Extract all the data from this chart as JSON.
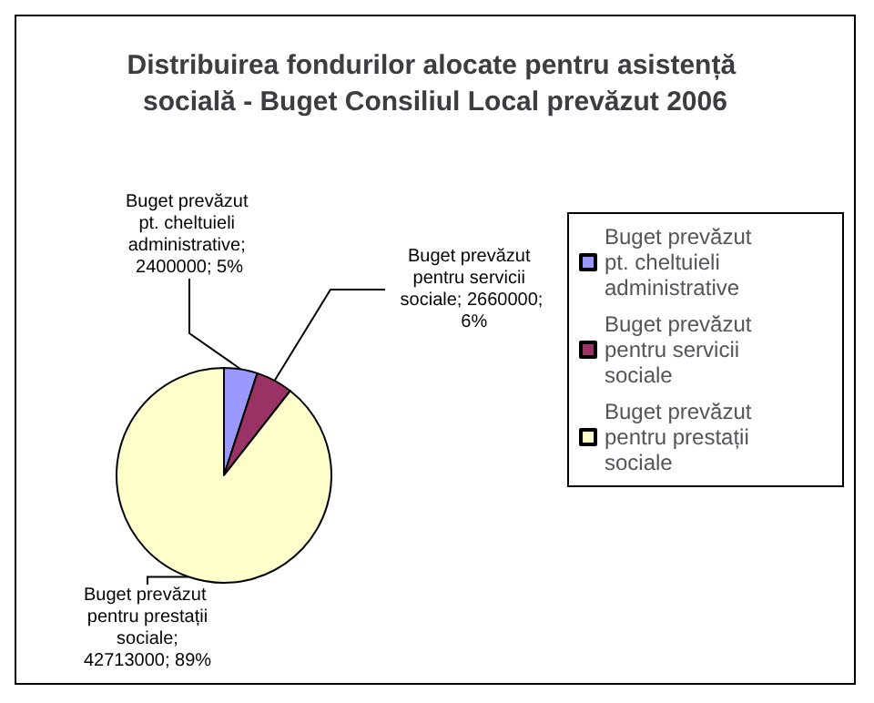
{
  "chart_data": {
    "type": "pie",
    "title": "Distribuirea fondurilor alocate pentru asistență socială - Buget Consiliul Local prevăzut 2006",
    "categories": [
      "Buget prevăzut pt. cheltuieli administrative",
      "Buget prevăzut pentru servicii sociale",
      "Buget prevăzut pentru prestații sociale"
    ],
    "values": [
      2400000,
      2660000,
      42713000
    ],
    "colors": [
      "#9999ff",
      "#993366",
      "#ffffcc"
    ],
    "value_labels": [
      "Buget prevăzut pt. cheltuieli administrative; 2400000; 5%",
      "Buget prevăzut pentru servicii sociale; 2660000; 6%",
      "Buget prevăzut pentru prestații sociale; 42713000; 89%"
    ],
    "legend": "right"
  }
}
